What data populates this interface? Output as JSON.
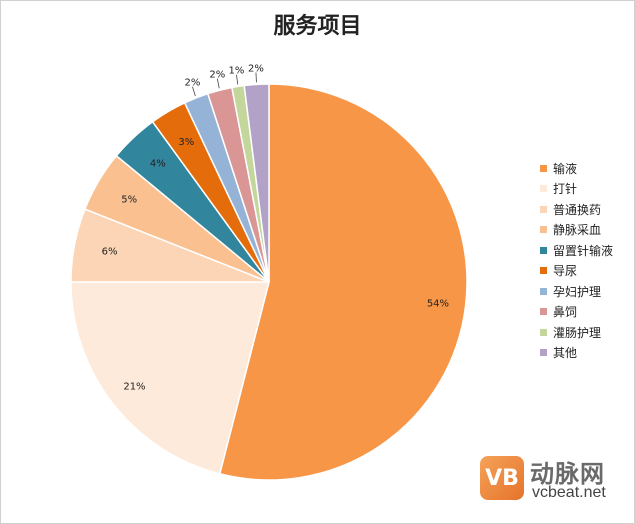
{
  "chart_data": {
    "type": "pie",
    "title": "服务项目",
    "legend_position": "right",
    "slices": [
      {
        "label": "输液",
        "value": 54,
        "display": "54%",
        "color": "#f79646"
      },
      {
        "label": "打针",
        "value": 21,
        "display": "21%",
        "color": "#fdeada"
      },
      {
        "label": "普通换药",
        "value": 6,
        "display": "6%",
        "color": "#fbd5b5"
      },
      {
        "label": "静脉采血",
        "value": 5,
        "display": "5%",
        "color": "#fac090"
      },
      {
        "label": "留置针输液",
        "value": 4,
        "display": "4%",
        "color": "#31859c"
      },
      {
        "label": "导尿",
        "value": 3,
        "display": "3%",
        "color": "#e46c0a"
      },
      {
        "label": "孕妇护理",
        "value": 2,
        "display": "2%",
        "color": "#95b3d7"
      },
      {
        "label": "鼻饲",
        "value": 2,
        "display": "2%",
        "color": "#d99694"
      },
      {
        "label": "灌肠护理",
        "value": 1,
        "display": "1%",
        "color": "#c3d69b"
      },
      {
        "label": "其他",
        "value": 2,
        "display": "2%",
        "color": "#b3a2c7"
      }
    ]
  },
  "watermark": {
    "mark_text": "VB",
    "cn_text": "动脉网",
    "en_text": "vcbeat.net"
  }
}
